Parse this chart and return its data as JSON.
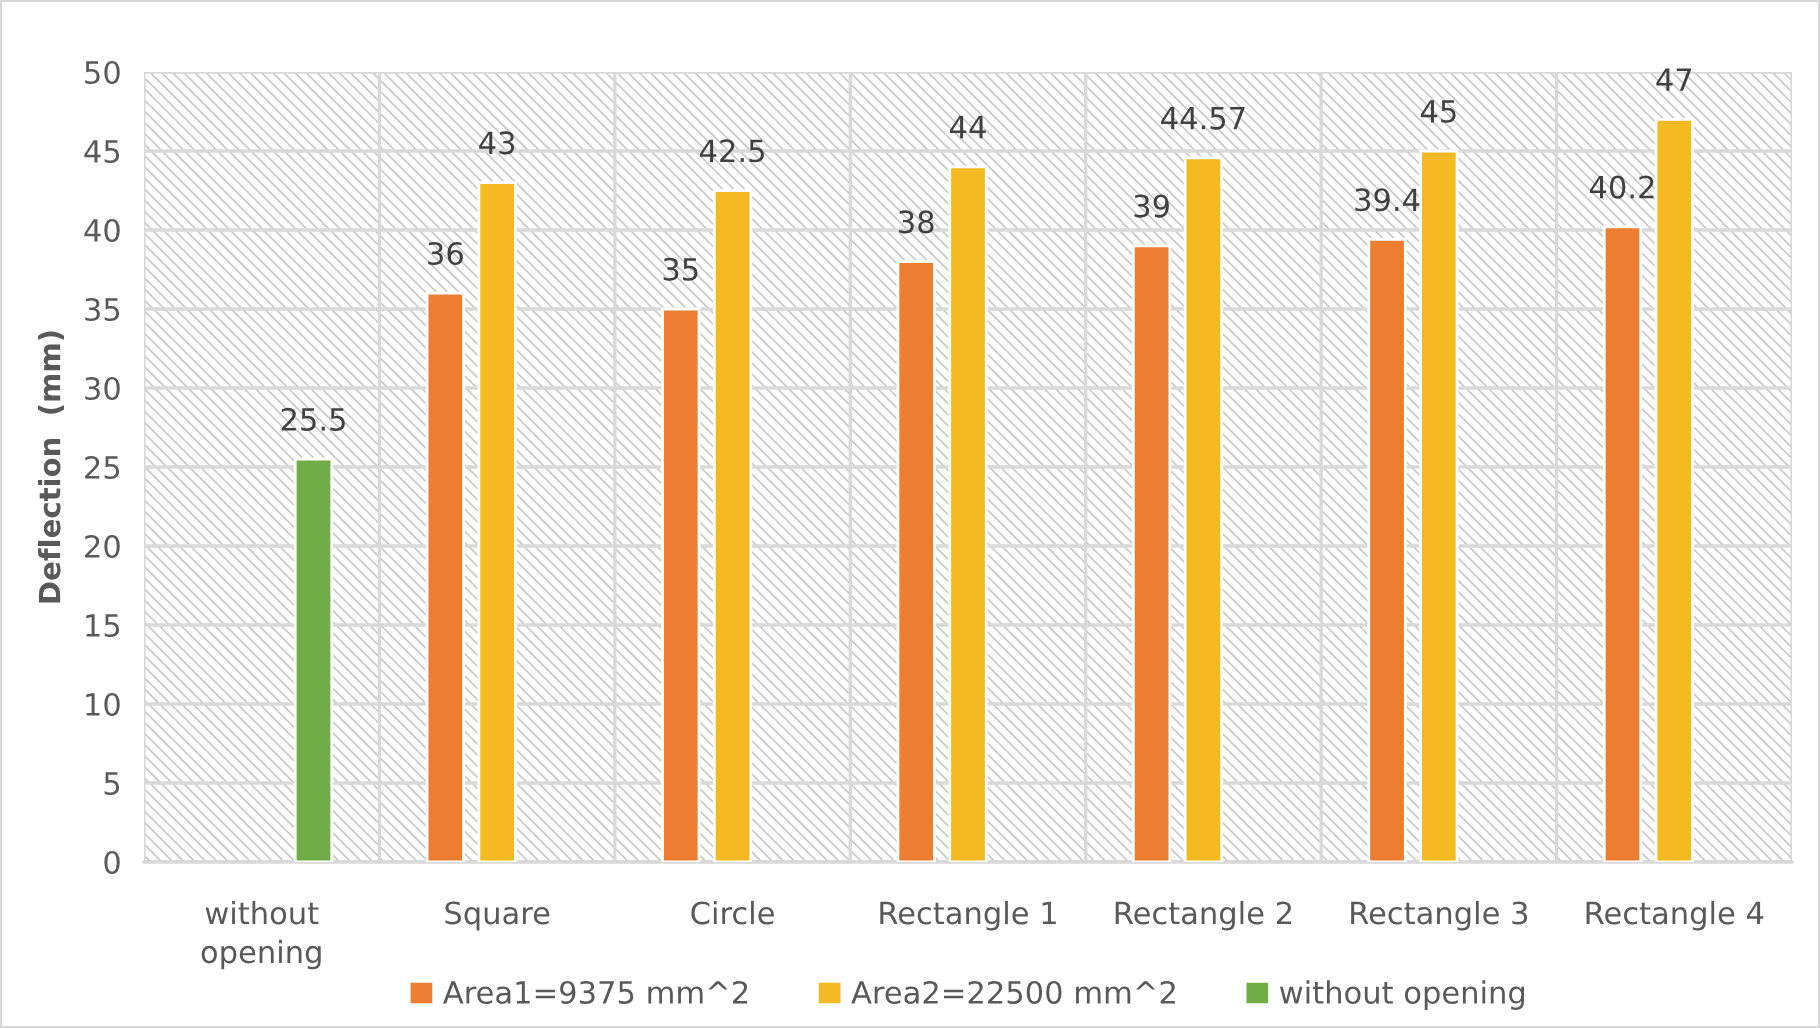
{
  "chart_data": {
    "type": "bar",
    "ylabel": "Deflection  (mm)",
    "categories": [
      "without\nopening",
      "Square",
      "Circle",
      "Rectangle 1",
      "Rectangle 2",
      "Rectangle 3",
      "Rectangle 4"
    ],
    "series": [
      {
        "name": "Area1=9375 mm^2",
        "color": "#ed7d31",
        "values": [
          null,
          36,
          35,
          38,
          39,
          39.4,
          40.2
        ]
      },
      {
        "name": "Area2=22500 mm^2",
        "color": "#f5b921",
        "values": [
          null,
          43,
          42.5,
          44,
          44.57,
          45,
          47
        ]
      },
      {
        "name": "without opening",
        "color": "#70ad47",
        "values": [
          25.5,
          null,
          null,
          null,
          null,
          null,
          null
        ]
      }
    ],
    "ylim": [
      0,
      50
    ],
    "yticks": [
      0,
      5,
      10,
      15,
      20,
      25,
      30,
      35,
      40,
      45,
      50
    ],
    "grid": true,
    "legend": "bottom",
    "data_labels": true
  }
}
